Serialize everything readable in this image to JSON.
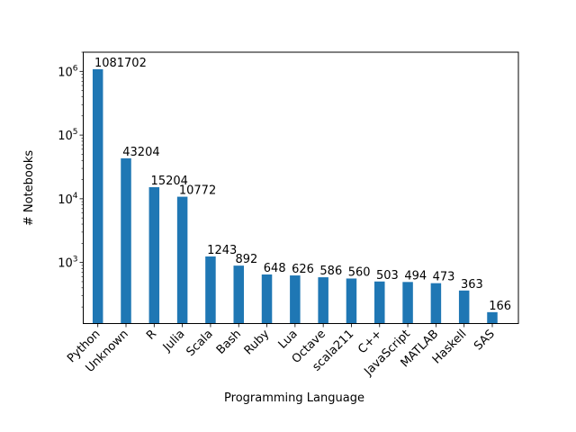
{
  "chart_data": {
    "type": "bar",
    "title": "",
    "xlabel": "Programming Language",
    "ylabel": "# Notebooks",
    "yscale": "log",
    "ylim": [
      110,
      2000000
    ],
    "y_ticks": [
      {
        "value": 1000,
        "base": "10",
        "exp": "3"
      },
      {
        "value": 10000,
        "base": "10",
        "exp": "4"
      },
      {
        "value": 100000,
        "base": "10",
        "exp": "5"
      },
      {
        "value": 1000000,
        "base": "10",
        "exp": "6"
      }
    ],
    "grid": false,
    "bar_color": "#1f77b4",
    "categories": [
      "Python",
      "Unknown",
      "R",
      "Julia",
      "Scala",
      "Bash",
      "Ruby",
      "Lua",
      "Octave",
      "scala211",
      "C++",
      "JavaScript",
      "MATLAB",
      "Haskell",
      "SAS"
    ],
    "values": [
      1081702,
      43204,
      15204,
      10772,
      1243,
      892,
      648,
      626,
      586,
      560,
      503,
      494,
      473,
      363,
      166
    ],
    "data_labels": [
      "1081702",
      "43204",
      "15204",
      "10772",
      "1243",
      "892",
      "648",
      "626",
      "586",
      "560",
      "503",
      "494",
      "473",
      "363",
      "166"
    ]
  }
}
